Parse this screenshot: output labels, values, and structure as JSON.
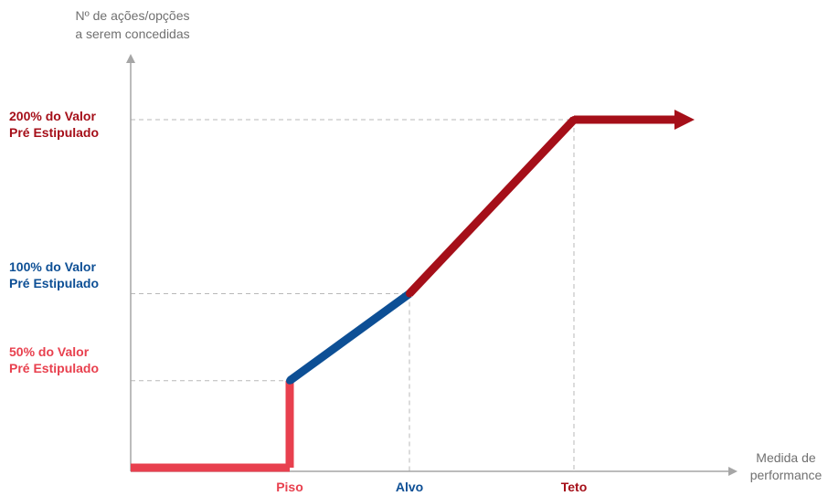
{
  "chart_data": {
    "type": "line",
    "ylabel": [
      "Nº de ações/opções",
      "a serem concedidas"
    ],
    "xlabel": [
      "Medida de",
      "performance"
    ],
    "colors": {
      "axis": "#a6a6a6",
      "grid": "#b8b8b8",
      "floor": "#e8404e",
      "target": "#0d4f95",
      "ceiling": "#a50f19",
      "axis_title": "#707070"
    },
    "y_ticks": [
      {
        "id": "y200",
        "value": 200,
        "lines": [
          "200% do Valor",
          "Pré Estipulado"
        ],
        "color": "#a50f19"
      },
      {
        "id": "y100",
        "value": 100,
        "lines": [
          "100% do Valor",
          "Pré Estipulado"
        ],
        "color": "#0d4f95"
      },
      {
        "id": "y50",
        "value": 50,
        "lines": [
          "50% do Valor",
          "Pré Estipulado"
        ],
        "color": "#e8404e"
      }
    ],
    "x_ticks": [
      {
        "id": "piso",
        "label": "Piso",
        "color": "#e8404e"
      },
      {
        "id": "alvo",
        "label": "Alvo",
        "color": "#0d4f95"
      },
      {
        "id": "teto",
        "label": "Teto",
        "color": "#a50f19"
      }
    ],
    "segments": [
      {
        "id": "below-floor",
        "from": [
          "start",
          0
        ],
        "to": [
          "piso",
          0
        ],
        "color": "#e8404e"
      },
      {
        "id": "floor-jump",
        "from": [
          "piso",
          0
        ],
        "to": [
          "piso",
          50
        ],
        "color": "#e8404e"
      },
      {
        "id": "floor-to-target",
        "from": [
          "piso",
          50
        ],
        "to": [
          "alvo",
          100
        ],
        "color": "#0d4f95"
      },
      {
        "id": "target-to-ceiling",
        "from": [
          "alvo",
          100
        ],
        "to": [
          "teto",
          200
        ],
        "color": "#a50f19"
      },
      {
        "id": "above-ceiling",
        "from": [
          "teto",
          200
        ],
        "to": [
          "end",
          200
        ],
        "color": "#a50f19",
        "arrow": true
      }
    ]
  }
}
